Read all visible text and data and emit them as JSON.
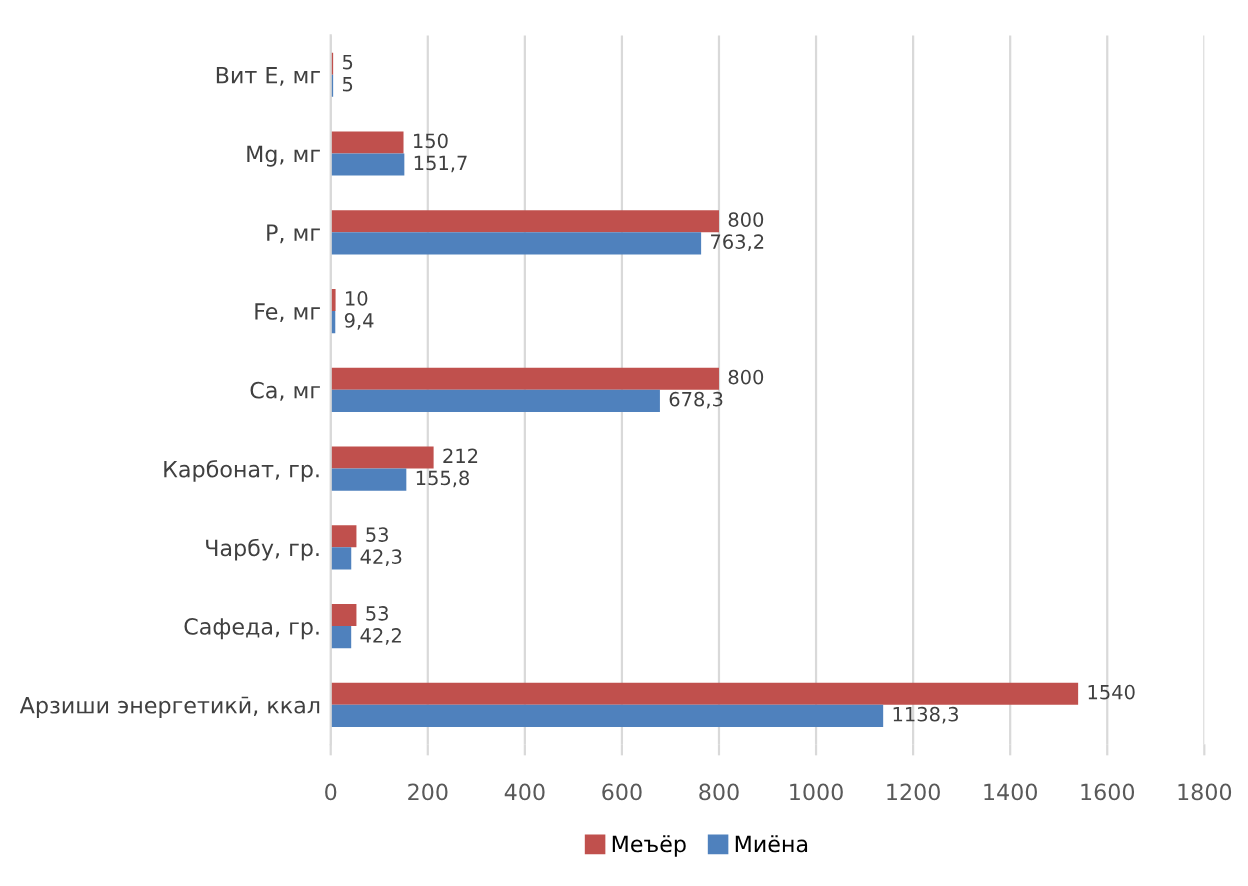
{
  "chart_data": {
    "type": "bar",
    "orientation": "horizontal",
    "categories": [
      "Вит Е, мг",
      "Mg, мг",
      "P, мг",
      "Fe, мг",
      "Ca, мг",
      "Карбонат, гр.",
      "Чарбу, гр.",
      "Сафеда, гр.",
      "Арзиши энергетикӣ, ккал"
    ],
    "series": [
      {
        "name": "Меъёр",
        "color": "#c0504d",
        "values": [
          5,
          150,
          800,
          10,
          800,
          212,
          53,
          53,
          1540
        ],
        "value_labels": [
          "5",
          "150",
          "800",
          "10",
          "800",
          "212",
          "53",
          "53",
          "1540"
        ]
      },
      {
        "name": "Миёна",
        "color": "#4f81bd",
        "values": [
          5,
          151.7,
          763.2,
          9.4,
          678.3,
          155.8,
          42.3,
          42.2,
          1138.3
        ],
        "value_labels": [
          "5",
          "151,7",
          "763,2",
          "9,4",
          "678,3",
          "155,8",
          "42,3",
          "42,2",
          "1138,3"
        ]
      }
    ],
    "xlim": [
      0,
      1800
    ],
    "xticks": [
      0,
      200,
      400,
      600,
      800,
      1000,
      1200,
      1400,
      1600,
      1800
    ],
    "grid": "x",
    "legend": "bottom"
  }
}
